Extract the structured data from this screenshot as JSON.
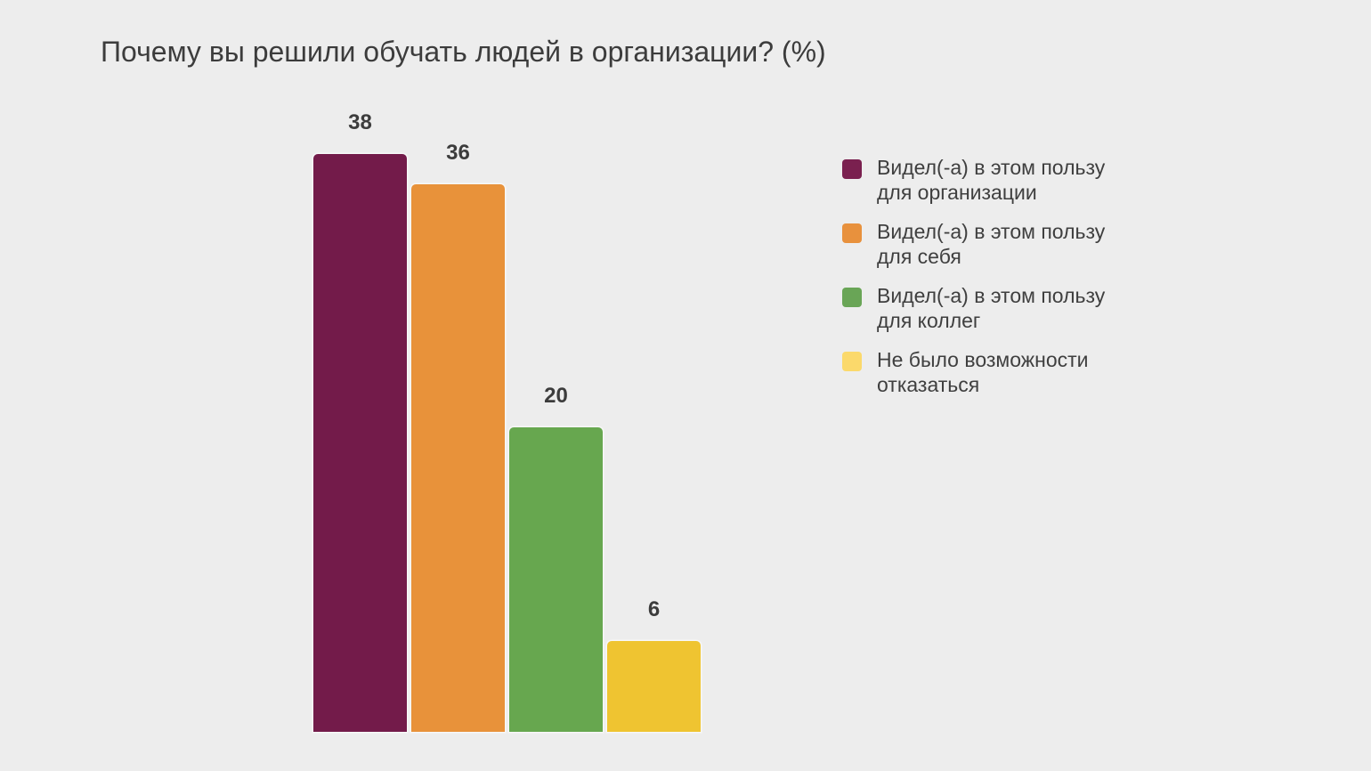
{
  "page": {
    "background_color": "#EDEDED"
  },
  "chart_data": {
    "type": "bar",
    "title": "Почему вы решили обучать людей в организации? (%)",
    "categories": [
      "Видел(-а) в этом пользу для организации",
      "Видел(-а) в этом пользу для себя",
      "Видел(-а) в этом пользу для коллег",
      "Не было возможности отказаться"
    ],
    "values": [
      38,
      36,
      20,
      6
    ],
    "unit": "%",
    "ylim": [
      0,
      38
    ],
    "grid": false,
    "axes_visible": false,
    "legend_position": "right",
    "bar_colors": [
      "#731B4A",
      "#E8923A",
      "#67A74F",
      "#EFC431"
    ],
    "legend": [
      {
        "label": "Видел(-а) в этом пользу\nдля организации",
        "swatch_color": "#7A204F"
      },
      {
        "label": "Видел(-а) в этом пользу\nдля себя",
        "swatch_color": "#E8913D"
      },
      {
        "label": "Видел(-а) в этом пользу\nдля коллег",
        "swatch_color": "#69A556"
      },
      {
        "label": "Не было возможности\nотказаться",
        "swatch_color": "#FBD96B"
      }
    ],
    "title_color": "#3C3C3C",
    "value_label_color": "#3C3C3C",
    "legend_text_color": "#3F3F3F"
  }
}
